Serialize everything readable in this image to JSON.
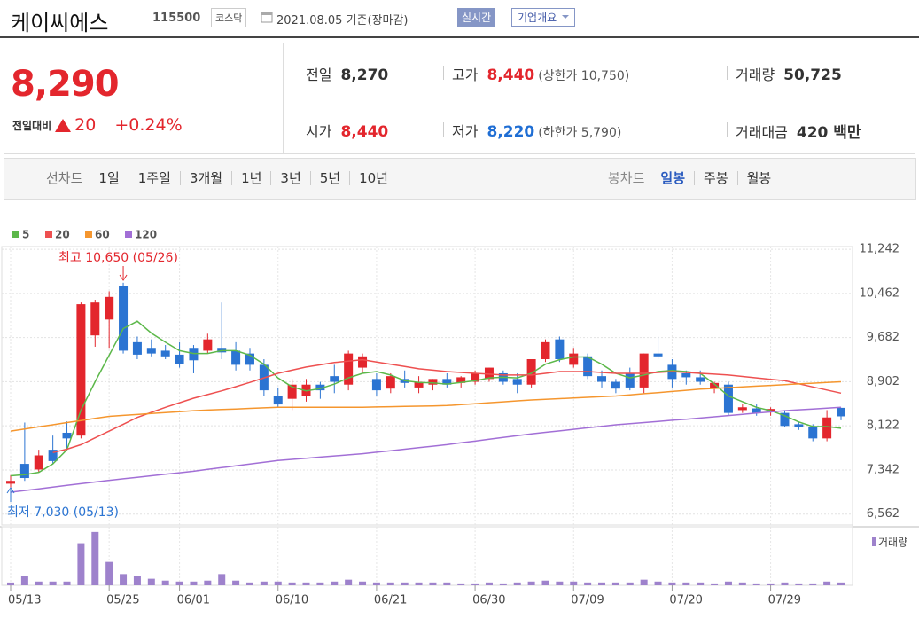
{
  "header": {
    "name": "케이씨에스",
    "code": "115500",
    "market": "코스닥",
    "date": "2021.08.05 기준(장마감)",
    "realtime": "실시간",
    "company_info": "기업개요"
  },
  "quote": {
    "price": "8,290",
    "change_label": "전일대비",
    "change": "20",
    "change_pct": "+0.24%"
  },
  "stats": [
    [
      {
        "label": "전일",
        "value": "8,270"
      },
      {
        "label": "고가",
        "value": "8,440",
        "note": "(상한가 10,750)"
      },
      {
        "label": "거래량",
        "value": "50,725"
      }
    ],
    [
      {
        "label": "시가",
        "value": "8,440"
      },
      {
        "label": "저가",
        "value": "8,220",
        "note": "(하한가 5,790)"
      },
      {
        "label": "거래대금",
        "value": "420 백만"
      }
    ]
  ],
  "line_chart_menu": {
    "label": "선차트",
    "items": [
      "1일",
      "1주일",
      "3개월",
      "1년",
      "3년",
      "5년",
      "10년"
    ]
  },
  "candle_chart_menu": {
    "label": "봉차트",
    "items": [
      "일봉",
      "주봉",
      "월봉"
    ]
  },
  "chart_data": {
    "type": "candlestick",
    "categories": [
      "05/13",
      null,
      null,
      null,
      null,
      null,
      null,
      "05/25",
      null,
      null,
      null,
      null,
      "06/01",
      null,
      null,
      null,
      null,
      null,
      null,
      "06/10",
      null,
      null,
      null,
      null,
      null,
      null,
      "06/21",
      null,
      null,
      null,
      null,
      null,
      null,
      "06/30",
      null,
      null,
      null,
      null,
      null,
      null,
      "07/09",
      null,
      null,
      null,
      null,
      null,
      null,
      "07/20",
      null,
      null,
      null,
      null,
      null,
      null,
      "07/29",
      null,
      null,
      null,
      null,
      null
    ],
    "open": [
      7100,
      7450,
      7350,
      7700,
      8000,
      7950,
      9720,
      10000,
      10600,
      9600,
      9500,
      9450,
      9380,
      9500,
      9450,
      9500,
      9450,
      9400,
      9200,
      8650,
      8600,
      8650,
      8850,
      9000,
      8850,
      9150,
      8950,
      8780,
      8950,
      8800,
      8850,
      8950,
      8880,
      8900,
      8950,
      9050,
      8950,
      8850,
      9300,
      9650,
      9200,
      9350,
      9000,
      8900,
      9050,
      8800,
      9400,
      9200,
      9050,
      8980,
      8780,
      8850,
      8400,
      8430,
      8380,
      8350,
      8150,
      8100,
      7900,
      8440
    ],
    "high": [
      7250,
      8180,
      7700,
      7950,
      8200,
      10300,
      10350,
      10500,
      10650,
      9700,
      9650,
      9550,
      9600,
      9550,
      9750,
      10300,
      9600,
      9500,
      9300,
      8800,
      8950,
      8950,
      8900,
      9200,
      9450,
      9400,
      9050,
      9050,
      9100,
      9000,
      8950,
      9050,
      9000,
      9100,
      9150,
      9100,
      9050,
      9300,
      9650,
      9700,
      9500,
      9400,
      9100,
      8950,
      9150,
      9400,
      9700,
      9300,
      9100,
      9100,
      8900,
      8900,
      8500,
      8500,
      8450,
      8400,
      8200,
      8150,
      8400,
      8440
    ],
    "low": [
      7030,
      7150,
      7300,
      7450,
      7700,
      7900,
      9520,
      9500,
      9400,
      9300,
      9350,
      9300,
      9150,
      9050,
      9400,
      9300,
      9100,
      9100,
      8650,
      8450,
      8400,
      8550,
      8600,
      8700,
      8750,
      9050,
      8650,
      8700,
      8800,
      8700,
      8750,
      8800,
      8800,
      8850,
      8900,
      8850,
      8700,
      8800,
      9250,
      9250,
      9150,
      8950,
      8800,
      8700,
      8750,
      8700,
      9300,
      8800,
      8850,
      8850,
      8700,
      8300,
      8350,
      8300,
      8300,
      8100,
      8050,
      7850,
      7850,
      8220
    ],
    "close": [
      7150,
      7200,
      7600,
      7500,
      7900,
      10270,
      10300,
      10400,
      9450,
      9380,
      9400,
      9350,
      9220,
      9280,
      9650,
      9420,
      9200,
      9200,
      8750,
      8500,
      8850,
      8850,
      8750,
      8900,
      9400,
      9350,
      8750,
      9000,
      8880,
      8900,
      8950,
      8850,
      8980,
      9050,
      9150,
      8900,
      8850,
      9300,
      9600,
      9300,
      9400,
      9000,
      8900,
      8780,
      8800,
      9400,
      9350,
      8950,
      8980,
      8900,
      8880,
      8350,
      8450,
      8350,
      8420,
      8120,
      8100,
      7900,
      8270,
      8290
    ],
    "up_color": "#e3262d",
    "down_color": "#2b74d2",
    "series": [
      {
        "name": "5",
        "color": "#5cb84a",
        "values": [
          7240,
          7260,
          7300,
          7450,
          7700,
          8400,
          8900,
          9370,
          9840,
          9970,
          9760,
          9600,
          9450,
          9400,
          9400,
          9450,
          9450,
          9370,
          9210,
          8970,
          8810,
          8740,
          8780,
          8860,
          8970,
          9050,
          9080,
          9020,
          8920,
          8890,
          8880,
          8860,
          8890,
          8920,
          8970,
          8980,
          8970,
          9050,
          9210,
          9290,
          9340,
          9340,
          9210,
          9050,
          8970,
          9020,
          9080,
          9100,
          9080,
          9050,
          8860,
          8650,
          8550,
          8450,
          8390,
          8300,
          8190,
          8110,
          8110,
          8080
        ]
      },
      {
        "name": "20",
        "color": "#ee5050",
        "values": [
          null,
          null,
          null,
          7650,
          7710,
          7790,
          7910,
          8030,
          8150,
          8270,
          8360,
          8450,
          8530,
          8610,
          8675,
          8740,
          8815,
          8890,
          8970,
          9050,
          9105,
          9160,
          9200,
          9240,
          9265,
          9290,
          9250,
          9210,
          9170,
          9130,
          9105,
          9080,
          9065,
          9050,
          9035,
          9020,
          9020,
          9020,
          9050,
          9080,
          9080,
          9080,
          9065,
          9050,
          9050,
          9050,
          9065,
          9080,
          9065,
          9050,
          9035,
          9020,
          8995,
          8970,
          8945,
          8920,
          8865,
          8810,
          8755,
          8700
        ]
      },
      {
        "name": "60",
        "color": "#f5962e",
        "values": [
          8030,
          8067,
          8104,
          8141,
          8179,
          8216,
          8253,
          8290,
          8307,
          8323,
          8340,
          8357,
          8373,
          8390,
          8400,
          8410,
          8420,
          8430,
          8440,
          8450,
          8450,
          8450,
          8450,
          8450,
          8450,
          8450,
          8455,
          8460,
          8465,
          8470,
          8475,
          8480,
          8497,
          8513,
          8530,
          8547,
          8563,
          8580,
          8592,
          8603,
          8615,
          8627,
          8638,
          8650,
          8670,
          8690,
          8710,
          8730,
          8750,
          8770,
          8783,
          8797,
          8810,
          8823,
          8837,
          8850,
          8863,
          8875,
          8888,
          8900
        ]
      },
      {
        "name": "120",
        "color": "#a26fd6",
        "values": [
          6950,
          6980,
          7010,
          7040,
          7070,
          7100,
          7130,
          7160,
          7187,
          7213,
          7240,
          7267,
          7293,
          7320,
          7352,
          7383,
          7415,
          7447,
          7478,
          7510,
          7530,
          7550,
          7570,
          7590,
          7610,
          7630,
          7657,
          7683,
          7710,
          7737,
          7763,
          7790,
          7822,
          7853,
          7885,
          7917,
          7948,
          7980,
          8007,
          8033,
          8060,
          8087,
          8113,
          8140,
          8160,
          8180,
          8200,
          8220,
          8240,
          8260,
          8282,
          8303,
          8325,
          8347,
          8368,
          8390,
          8405,
          8420,
          8435,
          8450
        ]
      }
    ],
    "ylim": [
      6370,
      11290
    ],
    "yticks": [
      {
        "value": 11242,
        "label": "11,242"
      },
      {
        "value": 10462,
        "label": "10,462"
      },
      {
        "value": 9682,
        "label": "9,682"
      },
      {
        "value": 8902,
        "label": "8,902"
      },
      {
        "value": 8122,
        "label": "8,122"
      },
      {
        "value": 7342,
        "label": "7,342"
      },
      {
        "value": 6562,
        "label": "6,562"
      }
    ],
    "grid": true,
    "volume_label": "거래량",
    "volume_color": "#9e82cc",
    "volume_ylim": [
      0,
      1000000
    ],
    "volume": [
      50000,
      170000,
      68000,
      68000,
      68000,
      765000,
      970000,
      425000,
      204000,
      170000,
      119000,
      85000,
      68000,
      68000,
      85000,
      204000,
      85000,
      51000,
      68000,
      68000,
      51000,
      51000,
      51000,
      68000,
      102000,
      68000,
      51000,
      51000,
      51000,
      51000,
      51000,
      51000,
      34000,
      34000,
      51000,
      34000,
      51000,
      68000,
      85000,
      68000,
      68000,
      51000,
      51000,
      51000,
      51000,
      102000,
      68000,
      51000,
      51000,
      51000,
      34000,
      68000,
      51000,
      34000,
      34000,
      51000,
      34000,
      34000,
      68000,
      50725
    ],
    "annotations": [
      {
        "text": "최고 10,650 (05/26)",
        "color": "#e3262d"
      },
      {
        "text": "최저 7,030 (05/13)",
        "color": "#2b74d2"
      }
    ]
  }
}
